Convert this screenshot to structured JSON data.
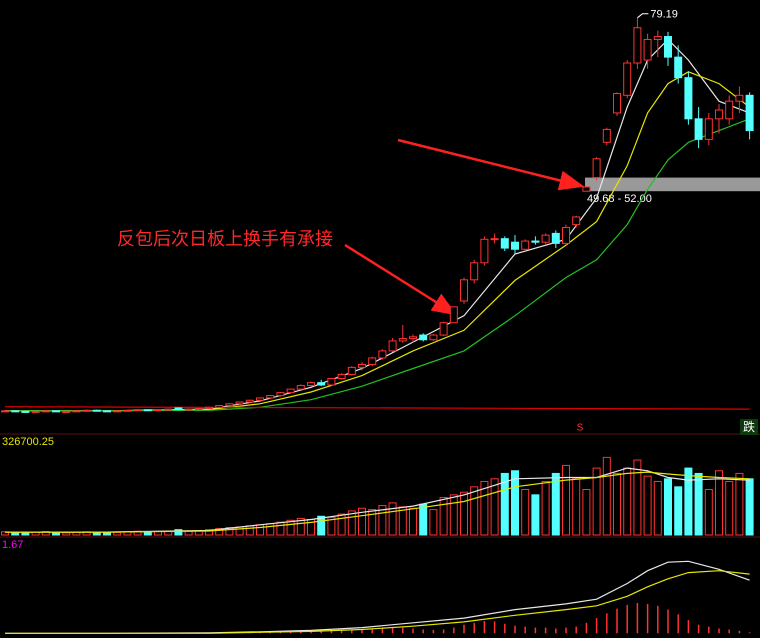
{
  "chart_data": [
    {
      "type": "candlestick",
      "annotation": "反包后次日板上换手有承接",
      "high_label": "79.19",
      "zone": {
        "label": "49.68 - 52.00",
        "low": 49.68,
        "high": 52.0,
        "color": "#b4b4b4"
      },
      "signal_s": "S",
      "signal_fall": "跌",
      "up_color": "#ff3232",
      "down_color": "#54ffff",
      "ylim": [
        8.7,
        81.2
      ],
      "ohlc": [
        [
          12.2,
          12.4,
          12.1,
          12.3
        ],
        [
          12.3,
          12.4,
          12.1,
          12.2
        ],
        [
          12.2,
          12.3,
          12.0,
          12.1
        ],
        [
          12.1,
          12.3,
          12.0,
          12.2
        ],
        [
          12.2,
          12.4,
          12.1,
          12.3
        ],
        [
          12.3,
          12.4,
          12.1,
          12.2
        ],
        [
          12.2,
          12.3,
          12.1,
          12.2
        ],
        [
          12.2,
          12.4,
          12.1,
          12.3
        ],
        [
          12.3,
          12.5,
          12.2,
          12.4
        ],
        [
          12.4,
          12.5,
          12.2,
          12.3
        ],
        [
          12.3,
          12.4,
          12.1,
          12.2
        ],
        [
          12.2,
          12.4,
          12.1,
          12.3
        ],
        [
          12.3,
          12.5,
          12.2,
          12.4
        ],
        [
          12.4,
          12.6,
          12.3,
          12.5
        ],
        [
          12.5,
          12.6,
          12.3,
          12.4
        ],
        [
          12.4,
          12.6,
          12.3,
          12.5
        ],
        [
          12.5,
          12.7,
          12.4,
          12.6
        ],
        [
          12.8,
          12.9,
          12.4,
          12.5
        ],
        [
          12.5,
          12.7,
          12.4,
          12.6
        ],
        [
          12.6,
          12.8,
          12.5,
          12.7
        ],
        [
          12.7,
          13.0,
          12.6,
          12.9
        ],
        [
          12.9,
          13.3,
          12.8,
          13.2
        ],
        [
          13.2,
          13.6,
          13.1,
          13.5
        ],
        [
          13.5,
          13.9,
          13.3,
          13.8
        ],
        [
          13.8,
          14.2,
          13.6,
          14.1
        ],
        [
          14.1,
          14.6,
          14.0,
          14.5
        ],
        [
          14.5,
          15.0,
          14.3,
          14.9
        ],
        [
          14.9,
          15.5,
          14.7,
          15.4
        ],
        [
          15.4,
          16.1,
          15.2,
          16.0
        ],
        [
          16.0,
          16.8,
          15.8,
          16.6
        ],
        [
          16.6,
          17.3,
          16.4,
          17.1
        ],
        [
          17.1,
          17.6,
          16.5,
          16.7
        ],
        [
          16.7,
          17.9,
          16.6,
          17.8
        ],
        [
          17.8,
          18.7,
          17.6,
          18.5
        ],
        [
          18.5,
          19.9,
          18.3,
          19.7
        ],
        [
          19.7,
          20.6,
          19.2,
          20.2
        ],
        [
          20.2,
          21.5,
          19.9,
          21.3
        ],
        [
          21.3,
          22.8,
          21.0,
          22.5
        ],
        [
          22.5,
          24.7,
          22.3,
          24.2
        ],
        [
          24.2,
          26.9,
          23.9,
          24.6
        ],
        [
          24.6,
          25.3,
          23.9,
          24.9
        ],
        [
          25.2,
          25.5,
          24.1,
          24.4
        ],
        [
          24.4,
          25.4,
          24.2,
          25.2
        ],
        [
          25.2,
          27.5,
          25.0,
          27.3
        ],
        [
          27.3,
          30.0,
          27.3,
          30.0
        ],
        [
          31.0,
          35.0,
          30.5,
          34.6
        ],
        [
          34.6,
          38.0,
          34.0,
          37.5
        ],
        [
          37.5,
          42.0,
          37.0,
          41.5
        ],
        [
          41.5,
          42.5,
          40.8,
          41.6
        ],
        [
          41.6,
          42.0,
          39.5,
          40.0
        ],
        [
          41.0,
          42.2,
          39.0,
          39.8
        ],
        [
          39.8,
          41.5,
          39.5,
          41.2
        ],
        [
          41.2,
          42.0,
          40.6,
          41.0
        ],
        [
          41.0,
          42.5,
          40.5,
          42.2
        ],
        [
          42.5,
          43.0,
          40.0,
          40.8
        ],
        [
          40.8,
          44.0,
          40.5,
          43.5
        ],
        [
          44.0,
          45.5,
          43.5,
          45.3
        ],
        [
          49.68,
          50.5,
          49.68,
          50.4
        ],
        [
          52.0,
          55.5,
          51.5,
          55.2
        ],
        [
          58.0,
          60.5,
          57.5,
          60.2
        ],
        [
          63.0,
          66.5,
          62.5,
          66.3
        ],
        [
          66.0,
          72.0,
          65.5,
          71.5
        ],
        [
          71.5,
          79.19,
          70.5,
          77.5
        ],
        [
          72.0,
          76.5,
          70.5,
          75.5
        ],
        [
          75.5,
          77.0,
          72.5,
          76.0
        ],
        [
          76.0,
          76.8,
          71.0,
          72.5
        ],
        [
          72.5,
          74.5,
          68.0,
          69.0
        ],
        [
          69.0,
          70.0,
          61.0,
          62.0
        ],
        [
          62.0,
          64.0,
          57.0,
          58.5
        ],
        [
          58.5,
          63.0,
          57.5,
          62.0
        ],
        [
          62.0,
          64.5,
          59.5,
          63.5
        ],
        [
          62.0,
          66.0,
          61.0,
          65.0
        ],
        [
          65.0,
          67.5,
          63.0,
          66.0
        ],
        [
          66.0,
          66.5,
          58.5,
          60.0
        ]
      ],
      "lines": [
        {
          "color": "#e8e8e8",
          "x": [
            0,
            10,
            20,
            25,
            30,
            35,
            40,
            45,
            50,
            55,
            58,
            61,
            63,
            65,
            67,
            70,
            73
          ],
          "values": [
            12.3,
            12.3,
            12.6,
            14.0,
            16.3,
            19.5,
            24.0,
            28.5,
            39.0,
            41.5,
            48.5,
            64,
            72,
            75.5,
            72,
            65,
            63
          ]
        },
        {
          "color": "#e6e600",
          "x": [
            0,
            10,
            20,
            25,
            30,
            35,
            40,
            45,
            50,
            55,
            58,
            61,
            63,
            65,
            67,
            70,
            73
          ],
          "values": [
            12.3,
            12.3,
            12.5,
            13.5,
            15.5,
            18.3,
            22.5,
            26.0,
            34.5,
            40.5,
            44.5,
            54,
            63,
            68,
            70,
            68,
            64
          ]
        },
        {
          "color": "#22c022",
          "x": [
            0,
            10,
            20,
            25,
            30,
            35,
            40,
            45,
            50,
            55,
            58,
            61,
            63,
            65,
            67,
            70,
            73
          ],
          "values": [
            12.3,
            12.3,
            12.4,
            12.9,
            14.2,
            16.5,
            19.5,
            22.5,
            28.5,
            35,
            38,
            44,
            50,
            55,
            58,
            60,
            62
          ]
        },
        {
          "color": "#e00000",
          "x": [
            0,
            73
          ],
          "values": [
            13.0,
            12.6
          ]
        }
      ]
    },
    {
      "type": "bar",
      "label": "326700.25",
      "label_color": "#e6e600",
      "ylim": [
        0,
        340000
      ],
      "values": [
        12000,
        10000,
        9000,
        11000,
        13000,
        9000,
        8000,
        10000,
        12000,
        11000,
        9000,
        10000,
        12000,
        14000,
        11000,
        13000,
        15000,
        20000,
        14000,
        16000,
        20000,
        24000,
        28000,
        30000,
        34000,
        38000,
        42000,
        48000,
        55000,
        62000,
        58000,
        70000,
        66000,
        78000,
        90000,
        100000,
        95000,
        110000,
        120000,
        105000,
        100000,
        115000,
        95000,
        140000,
        150000,
        160000,
        180000,
        200000,
        210000,
        230000,
        240000,
        170000,
        150000,
        200000,
        230000,
        260000,
        210000,
        170000,
        250000,
        290000,
        230000,
        250000,
        280000,
        220000,
        200000,
        210000,
        180000,
        250000,
        230000,
        170000,
        240000,
        200000,
        230000,
        210000
      ],
      "lines": [
        {
          "color": "#e8e8e8",
          "x": [
            0,
            10,
            20,
            25,
            30,
            35,
            40,
            45,
            50,
            55,
            58,
            61,
            63,
            65,
            67,
            70,
            73
          ],
          "values": [
            11000,
            11000,
            17000,
            38000,
            58000,
            85000,
            108000,
            150000,
            210000,
            215000,
            215000,
            250000,
            240000,
            215000,
            205000,
            210000,
            205000
          ]
        },
        {
          "color": "#e6e600",
          "x": [
            0,
            10,
            20,
            25,
            30,
            35,
            40,
            45,
            50,
            55,
            58,
            61,
            63,
            65,
            67,
            70,
            73
          ],
          "values": [
            11000,
            11000,
            15000,
            28000,
            47000,
            72000,
            98000,
            125000,
            180000,
            205000,
            215000,
            230000,
            235000,
            228000,
            222000,
            215000,
            210000
          ]
        }
      ]
    },
    {
      "type": "bar",
      "label": "1.67",
      "label_color": "#ff00ff",
      "color": "#ff3232",
      "ylim": [
        -0.1,
        1.8
      ],
      "values": [
        0,
        0,
        0,
        0,
        0,
        0,
        0,
        0,
        0,
        0,
        0,
        0,
        0,
        0,
        0,
        0,
        0,
        0,
        0,
        0,
        0.01,
        0.01,
        0.02,
        0.02,
        0.03,
        0.03,
        0.04,
        0.04,
        0.05,
        0.05,
        0.05,
        0.04,
        0.06,
        0.07,
        0.08,
        0.09,
        0.1,
        0.12,
        0.13,
        0.12,
        0.1,
        0.08,
        0.07,
        0.08,
        0.12,
        0.18,
        0.22,
        0.26,
        0.25,
        0.2,
        0.16,
        0.14,
        0.12,
        0.12,
        0.1,
        0.12,
        0.14,
        0.22,
        0.32,
        0.42,
        0.52,
        0.6,
        0.64,
        0.62,
        0.58,
        0.5,
        0.4,
        0.28,
        0.18,
        0.14,
        0.1,
        0.08,
        0.05,
        0.02
      ],
      "lines": [
        {
          "color": "#e8e8e8",
          "x": [
            0,
            10,
            20,
            25,
            30,
            35,
            40,
            45,
            50,
            55,
            58,
            61,
            63,
            65,
            67,
            70,
            73
          ],
          "values": [
            0,
            0,
            0.01,
            0.03,
            0.06,
            0.12,
            0.22,
            0.32,
            0.5,
            0.62,
            0.72,
            1.05,
            1.32,
            1.5,
            1.52,
            1.35,
            1.12
          ]
        },
        {
          "color": "#e6e600",
          "x": [
            0,
            10,
            20,
            25,
            30,
            35,
            40,
            45,
            50,
            55,
            58,
            61,
            63,
            65,
            67,
            70,
            73
          ],
          "values": [
            0,
            0,
            0,
            0.02,
            0.04,
            0.08,
            0.15,
            0.24,
            0.38,
            0.5,
            0.58,
            0.78,
            0.98,
            1.15,
            1.28,
            1.32,
            1.25
          ]
        }
      ]
    }
  ]
}
